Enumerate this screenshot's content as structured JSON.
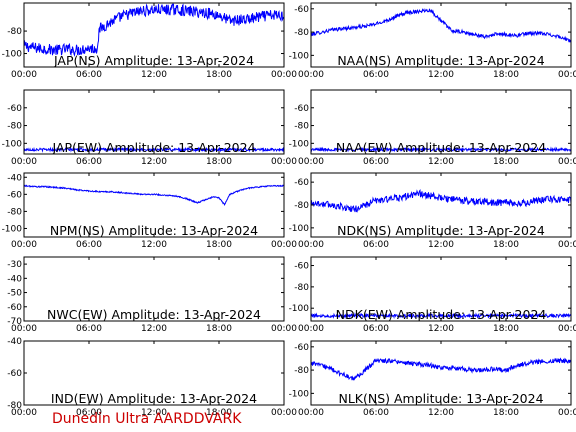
{
  "footer": {
    "text": "Dunedin Ultra AARDDVARK",
    "color": "#cc0000"
  },
  "series_color": "#0000ff",
  "chart_data": [
    {
      "type": "line",
      "title": "JAP(NS) Amplitude: 13-Apr-2024",
      "xlabel": "",
      "ylabel": "",
      "x_ticks": [
        "00:00",
        "06:00",
        "12:00",
        "18:00",
        "00:00"
      ],
      "y_ticks": [
        -80,
        -100
      ],
      "ylim": [
        -112,
        -55
      ],
      "series": [
        {
          "x": [
            0,
            1,
            2,
            3,
            4,
            5,
            6,
            6.7,
            7,
            8,
            9,
            10,
            11,
            12,
            13,
            14,
            15,
            16,
            17,
            18,
            19,
            20,
            21,
            22,
            23,
            24
          ],
          "y": [
            -93,
            -95,
            -96,
            -97,
            -96,
            -97,
            -95,
            -96,
            -78,
            -72,
            -67,
            -64,
            -62,
            -61,
            -61,
            -61,
            -62,
            -63,
            -64,
            -66,
            -71,
            -70,
            -69,
            -67,
            -66,
            -66
          ],
          "noise": 10
        }
      ]
    },
    {
      "type": "line",
      "title": "NAA(NS) Amplitude: 13-Apr-2024",
      "xlabel": "",
      "ylabel": "",
      "x_ticks": [
        "00:00",
        "06:00",
        "12:00",
        "18:00",
        "00:00"
      ],
      "y_ticks": [
        -60,
        -80,
        -100
      ],
      "ylim": [
        -110,
        -55
      ],
      "series": [
        {
          "x": [
            0,
            1,
            2,
            3,
            4,
            5,
            6,
            7,
            8,
            9,
            10,
            11,
            12,
            13,
            14,
            15,
            16,
            17,
            18,
            19,
            20,
            21,
            22,
            23,
            24
          ],
          "y": [
            -82,
            -80,
            -78,
            -77,
            -76,
            -75,
            -73,
            -70,
            -66,
            -63,
            -62,
            -61,
            -70,
            -79,
            -80,
            -82,
            -84,
            -82,
            -82,
            -83,
            -81,
            -81,
            -82,
            -84,
            -88
          ],
          "noise": 3
        }
      ]
    },
    {
      "type": "line",
      "title": "JAP(EW) Amplitude: 13-Apr-2024",
      "xlabel": "",
      "ylabel": "",
      "x_ticks": [
        "00:00",
        "06:00",
        "12:00",
        "18:00",
        "00:00"
      ],
      "y_ticks": [
        -60,
        -80,
        -100
      ],
      "ylim": [
        -112,
        -40
      ],
      "series": [
        {
          "x": [
            0,
            6,
            12,
            18,
            24
          ],
          "y": [
            -107,
            -107,
            -107,
            -107,
            -107
          ],
          "noise": 3
        }
      ]
    },
    {
      "type": "line",
      "title": "NAA(EW) Amplitude: 13-Apr-2024",
      "xlabel": "",
      "ylabel": "",
      "x_ticks": [
        "00:00",
        "06:00",
        "12:00",
        "18:00",
        "00:00"
      ],
      "y_ticks": [
        -60,
        -80,
        -100
      ],
      "ylim": [
        -112,
        -40
      ],
      "series": [
        {
          "x": [
            0,
            6,
            12,
            18,
            24
          ],
          "y": [
            -107,
            -107,
            -107,
            -107,
            -107
          ],
          "noise": 3
        }
      ]
    },
    {
      "type": "line",
      "title": "NPM(NS) Amplitude: 13-Apr-2024",
      "xlabel": "",
      "ylabel": "",
      "x_ticks": [
        "00:00",
        "06:00",
        "12:00",
        "18:00",
        "00:00"
      ],
      "y_ticks": [
        -40,
        -60,
        -80,
        -100
      ],
      "ylim": [
        -110,
        -35
      ],
      "series": [
        {
          "x": [
            0,
            1,
            2,
            3,
            4,
            5,
            6,
            7,
            8,
            9,
            10,
            11,
            12,
            13,
            14,
            15,
            16,
            17,
            17.5,
            18,
            18.5,
            19,
            20,
            21,
            22,
            23,
            24
          ],
          "y": [
            -50,
            -51,
            -51,
            -52,
            -53,
            -55,
            -56,
            -57,
            -57,
            -58,
            -59,
            -60,
            -60,
            -61,
            -62,
            -65,
            -70,
            -65,
            -63,
            -64,
            -72,
            -60,
            -55,
            -52,
            -51,
            -50,
            -50
          ],
          "noise": 1.5
        }
      ]
    },
    {
      "type": "line",
      "title": "NDK(NS) Amplitude: 13-Apr-2024",
      "xlabel": "",
      "ylabel": "",
      "x_ticks": [
        "00:00",
        "06:00",
        "12:00",
        "18:00",
        "00:00"
      ],
      "y_ticks": [
        -60,
        -80,
        -100
      ],
      "ylim": [
        -108,
        -52
      ],
      "series": [
        {
          "x": [
            0,
            1,
            2,
            3,
            4,
            5,
            6,
            7,
            8,
            9,
            10,
            11,
            12,
            13,
            14,
            15,
            16,
            17,
            18,
            19,
            20,
            21,
            22,
            23,
            24
          ],
          "y": [
            -78,
            -79,
            -80,
            -82,
            -84,
            -80,
            -76,
            -75,
            -74,
            -72,
            -70,
            -72,
            -74,
            -75,
            -76,
            -77,
            -77,
            -78,
            -78,
            -79,
            -78,
            -76,
            -75,
            -75,
            -76
          ],
          "noise": 6
        }
      ]
    },
    {
      "type": "line",
      "title": "NWC(EW) Amplitude: 13-Apr-2024",
      "xlabel": "",
      "ylabel": "",
      "x_ticks": [
        "00:00",
        "06:00",
        "12:00",
        "18:00",
        "00:00"
      ],
      "y_ticks": [
        -30,
        -40,
        -50,
        -60,
        -70
      ],
      "ylim": [
        -70,
        -25
      ],
      "series": []
    },
    {
      "type": "line",
      "title": "NDK(EW) Amplitude: 13-Apr-2024",
      "xlabel": "",
      "ylabel": "",
      "x_ticks": [
        "00:00",
        "06:00",
        "12:00",
        "18:00",
        "00:00"
      ],
      "y_ticks": [
        -60,
        -80,
        -100
      ],
      "ylim": [
        -112,
        -52
      ],
      "series": [
        {
          "x": [
            0,
            6,
            12,
            18,
            24
          ],
          "y": [
            -107,
            -107,
            -107,
            -107,
            -107
          ],
          "noise": 3
        }
      ]
    },
    {
      "type": "line",
      "title": "IND(EW) Amplitude: 13-Apr-2024",
      "xlabel": "",
      "ylabel": "",
      "x_ticks": [
        "00:00",
        "06:00",
        "12:00",
        "18:00",
        "00:00"
      ],
      "y_ticks": [
        -40,
        -60,
        -80
      ],
      "ylim": [
        -80,
        -40
      ],
      "series": []
    },
    {
      "type": "line",
      "title": "NLK(NS) Amplitude: 13-Apr-2024",
      "xlabel": "",
      "ylabel": "",
      "x_ticks": [
        "00:00",
        "06:00",
        "12:00",
        "18:00",
        "00:00"
      ],
      "y_ticks": [
        -60,
        -80,
        -100
      ],
      "ylim": [
        -110,
        -55
      ],
      "series": [
        {
          "x": [
            0,
            1,
            2,
            3,
            4,
            5,
            6,
            7,
            8,
            9,
            10,
            11,
            12,
            13,
            14,
            15,
            16,
            17,
            18,
            19,
            20,
            21,
            22,
            23,
            24
          ],
          "y": [
            -74,
            -76,
            -80,
            -84,
            -88,
            -80,
            -72,
            -72,
            -73,
            -74,
            -75,
            -76,
            -78,
            -78,
            -79,
            -80,
            -80,
            -79,
            -80,
            -76,
            -74,
            -73,
            -72,
            -72,
            -72
          ],
          "noise": 4
        }
      ]
    }
  ]
}
